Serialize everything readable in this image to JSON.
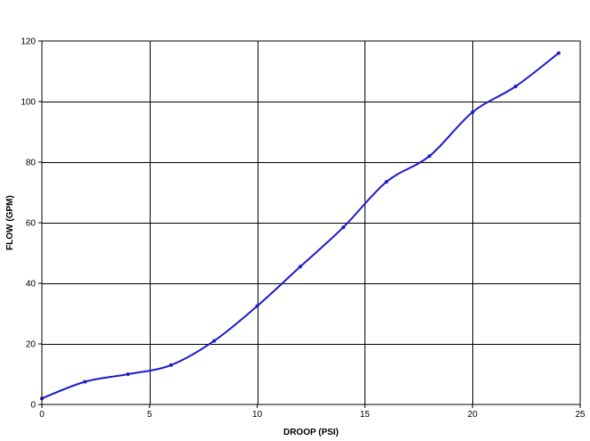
{
  "chart_data": {
    "type": "line",
    "title": "",
    "xlabel": "DROOP (PSI)",
    "ylabel": "FLOW (GPM)",
    "xlim": [
      0,
      25
    ],
    "ylim": [
      0,
      120
    ],
    "xticks": [
      0,
      5,
      10,
      15,
      20,
      25
    ],
    "yticks": [
      0,
      20,
      40,
      60,
      80,
      100,
      120
    ],
    "grid": true,
    "legend": "none",
    "series": [
      {
        "color": "#1a1acc",
        "x": [
          0,
          2,
          4,
          6,
          8,
          10,
          12,
          14,
          16,
          18,
          20,
          22,
          24
        ],
        "y": [
          2,
          7.5,
          10,
          13,
          21,
          32.5,
          45.5,
          58.5,
          73.5,
          82,
          96.5,
          105,
          116
        ]
      }
    ]
  }
}
